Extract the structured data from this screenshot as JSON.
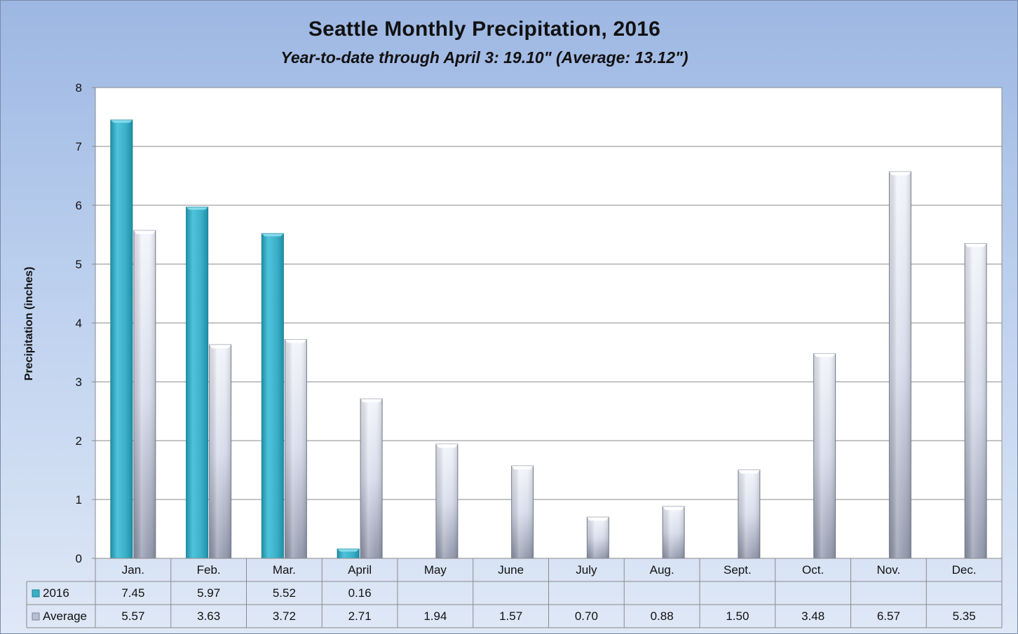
{
  "chart_data": {
    "type": "bar",
    "title": "Seattle Monthly Precipitation, 2016",
    "subtitle": "Year-to-date through April 3: 19.10\" (Average: 13.12\")",
    "xlabel": "",
    "ylabel": "Precipitation (inches)",
    "ylim": [
      0,
      8
    ],
    "yticks": [
      0,
      1,
      2,
      3,
      4,
      5,
      6,
      7,
      8
    ],
    "grid": true,
    "categories": [
      "Jan.",
      "Feb.",
      "Mar.",
      "April",
      "May",
      "June",
      "July",
      "Aug.",
      "Sept.",
      "Oct.",
      "Nov.",
      "Dec."
    ],
    "series": [
      {
        "name": "2016",
        "color": "#3aafc6",
        "values": [
          7.45,
          5.97,
          5.52,
          0.16,
          null,
          null,
          null,
          null,
          null,
          null,
          null,
          null
        ],
        "labels": [
          "7.45",
          "5.97",
          "5.52",
          "0.16",
          "",
          "",
          "",
          "",
          "",
          "",
          "",
          ""
        ]
      },
      {
        "name": "Average",
        "color": "#b8bfd2",
        "values": [
          5.57,
          3.63,
          3.72,
          2.71,
          1.94,
          1.57,
          0.7,
          0.88,
          1.5,
          3.48,
          6.57,
          5.35
        ],
        "labels": [
          "5.57",
          "3.63",
          "3.72",
          "2.71",
          "1.94",
          "1.57",
          "0.70",
          "0.88",
          "1.50",
          "3.48",
          "6.57",
          "5.35"
        ]
      }
    ],
    "data_table": true
  }
}
